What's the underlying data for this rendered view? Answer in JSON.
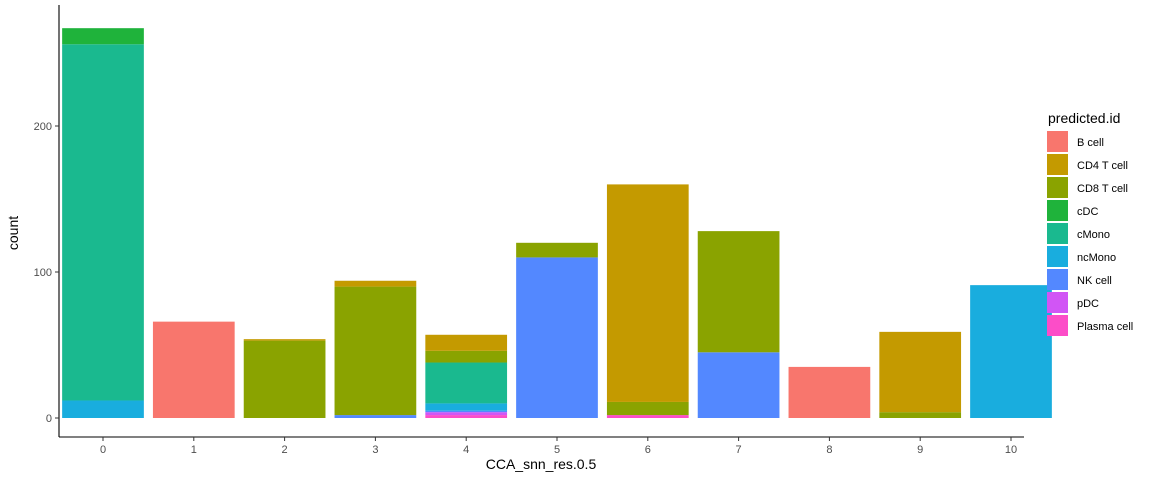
{
  "chart_data": {
    "type": "bar",
    "stacked": true,
    "title": "",
    "xlabel": "CCA_snn_res.0.5",
    "ylabel": "count",
    "categories": [
      "0",
      "1",
      "2",
      "3",
      "4",
      "5",
      "6",
      "7",
      "8",
      "9",
      "10"
    ],
    "y_ticks": [
      0,
      100,
      200
    ],
    "ylim": [
      0,
      270
    ],
    "grid": false,
    "legend": {
      "title": "predicted.id",
      "position": "right"
    },
    "series": [
      {
        "name": "B cell",
        "color": "#F8766D",
        "values": [
          0,
          66,
          0,
          0,
          0,
          0,
          0,
          0,
          35,
          0,
          0
        ]
      },
      {
        "name": "CD4 T cell",
        "color": "#C49A00",
        "values": [
          0,
          0,
          1,
          4,
          11,
          0,
          149,
          0,
          0,
          55,
          0
        ]
      },
      {
        "name": "CD8 T cell",
        "color": "#8AA300",
        "values": [
          0,
          0,
          53,
          88,
          8,
          10,
          9,
          83,
          0,
          4,
          0
        ]
      },
      {
        "name": "cDC",
        "color": "#1FB33B",
        "values": [
          11,
          0,
          0,
          0,
          0,
          0,
          0,
          0,
          0,
          0,
          0
        ]
      },
      {
        "name": "cMono",
        "color": "#1AB98F",
        "values": [
          244,
          0,
          0,
          0,
          28,
          0,
          0,
          0,
          0,
          0,
          0
        ]
      },
      {
        "name": "ncMono",
        "color": "#19ADDE",
        "values": [
          12,
          0,
          0,
          0,
          5,
          0,
          0,
          0,
          0,
          0,
          91
        ]
      },
      {
        "name": "NK cell",
        "color": "#5388FF",
        "values": [
          0,
          0,
          0,
          2,
          1,
          110,
          0,
          45,
          0,
          0,
          0
        ]
      },
      {
        "name": "pDC",
        "color": "#D155F5",
        "values": [
          0,
          0,
          0,
          0,
          2,
          0,
          0,
          0,
          0,
          0,
          0
        ]
      },
      {
        "name": "Plasma cell",
        "color": "#FC4DC8",
        "values": [
          0,
          0,
          0,
          0,
          2,
          0,
          2,
          0,
          0,
          0,
          0
        ]
      }
    ]
  }
}
